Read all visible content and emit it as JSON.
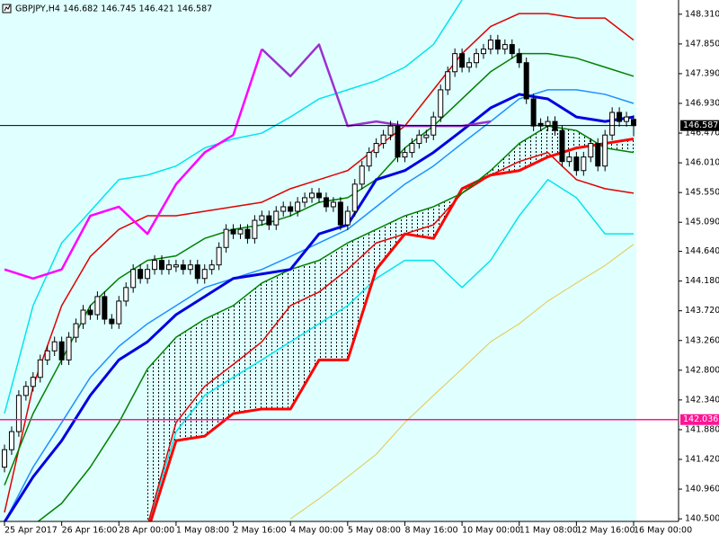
{
  "chart_data": {
    "type": "candlestick",
    "title": "GBPJPY,H4  146.682 146.745 146.421 146.587",
    "ylim": [
      140.46,
      148.53
    ],
    "xlim": [
      0,
      88
    ],
    "yticks": [
      {
        "value": 148.31,
        "label": "148.310"
      },
      {
        "value": 147.85,
        "label": "147.850"
      },
      {
        "value": 147.39,
        "label": "147.390"
      },
      {
        "value": 146.93,
        "label": "146.930"
      },
      {
        "value": 146.47,
        "label": "146.470"
      },
      {
        "value": 146.01,
        "label": "146.010"
      },
      {
        "value": 145.55,
        "label": "145.550"
      },
      {
        "value": 145.09,
        "label": "145.090"
      },
      {
        "value": 144.64,
        "label": "144.640"
      },
      {
        "value": 144.18,
        "label": "144.180"
      },
      {
        "value": 143.72,
        "label": "143.720"
      },
      {
        "value": 143.26,
        "label": "143.260"
      },
      {
        "value": 142.8,
        "label": "142.800"
      },
      {
        "value": 142.34,
        "label": "142.340"
      },
      {
        "value": 141.88,
        "label": "141.880"
      },
      {
        "value": 141.42,
        "label": "141.420"
      },
      {
        "value": 140.96,
        "label": "140.960"
      },
      {
        "value": 140.5,
        "label": "140.500"
      }
    ],
    "xticks": [
      {
        "value": 0,
        "label": "25 Apr 2017"
      },
      {
        "value": 8,
        "label": "26 Apr 16:00"
      },
      {
        "value": 16,
        "label": "28 Apr 00:00"
      },
      {
        "value": 24,
        "label": "1 May 08:00"
      },
      {
        "value": 32,
        "label": "2 May 16:00"
      },
      {
        "value": 40,
        "label": "4 May 00:00"
      },
      {
        "value": 48,
        "label": "5 May 08:00"
      },
      {
        "value": 56,
        "label": "8 May 16:00"
      },
      {
        "value": 64,
        "label": "10 May 00:00"
      },
      {
        "value": 72,
        "label": "11 May 08:00"
      },
      {
        "value": 80,
        "label": "12 May 16:00"
      },
      {
        "value": 88,
        "label": "16 May 00:00"
      }
    ],
    "up_color": "#ffffff",
    "down_color": "#000000",
    "ohlc": [
      [
        141.3,
        141.65,
        141.22,
        141.57
      ],
      [
        141.57,
        141.93,
        141.49,
        141.85
      ],
      [
        141.85,
        142.49,
        141.77,
        142.41
      ],
      [
        142.41,
        142.63,
        142.33,
        142.55
      ],
      [
        142.55,
        142.77,
        142.47,
        142.69
      ],
      [
        142.69,
        143.04,
        142.61,
        142.96
      ],
      [
        142.96,
        143.18,
        142.88,
        143.1
      ],
      [
        143.1,
        143.32,
        143.02,
        143.24
      ],
      [
        143.24,
        143.32,
        142.88,
        142.96
      ],
      [
        142.96,
        143.39,
        142.88,
        143.31
      ],
      [
        143.31,
        143.6,
        143.23,
        143.52
      ],
      [
        143.52,
        143.81,
        143.44,
        143.73
      ],
      [
        143.73,
        143.81,
        143.58,
        143.66
      ],
      [
        143.66,
        144.02,
        143.58,
        143.94
      ],
      [
        143.94,
        144.02,
        143.51,
        143.59
      ],
      [
        143.59,
        143.67,
        143.44,
        143.52
      ],
      [
        143.52,
        143.95,
        143.44,
        143.87
      ],
      [
        143.87,
        144.16,
        143.79,
        144.08
      ],
      [
        144.08,
        144.44,
        144.0,
        144.36
      ],
      [
        144.36,
        144.44,
        144.14,
        144.22
      ],
      [
        144.22,
        144.44,
        144.14,
        144.36
      ],
      [
        144.36,
        144.58,
        144.28,
        144.5
      ],
      [
        144.5,
        144.58,
        144.28,
        144.36
      ],
      [
        144.36,
        144.51,
        144.28,
        144.43
      ],
      [
        144.4,
        144.51,
        144.32,
        144.43
      ],
      [
        144.43,
        144.51,
        144.28,
        144.36
      ],
      [
        144.36,
        144.51,
        144.28,
        144.43
      ],
      [
        144.43,
        144.51,
        144.14,
        144.22
      ],
      [
        144.22,
        144.44,
        144.14,
        144.36
      ],
      [
        144.36,
        144.51,
        144.28,
        144.43
      ],
      [
        144.43,
        144.78,
        144.35,
        144.7
      ],
      [
        144.7,
        145.06,
        144.62,
        144.98
      ],
      [
        144.98,
        145.06,
        144.83,
        144.91
      ],
      [
        144.91,
        145.06,
        144.83,
        144.98
      ],
      [
        144.98,
        145.06,
        144.76,
        144.84
      ],
      [
        144.84,
        145.2,
        144.76,
        145.12
      ],
      [
        145.12,
        145.27,
        145.04,
        145.19
      ],
      [
        145.19,
        145.27,
        144.97,
        145.05
      ],
      [
        145.05,
        145.34,
        144.97,
        145.26
      ],
      [
        145.26,
        145.41,
        145.18,
        145.33
      ],
      [
        145.33,
        145.41,
        145.18,
        145.26
      ],
      [
        145.26,
        145.48,
        145.18,
        145.4
      ],
      [
        145.4,
        145.55,
        145.32,
        145.47
      ],
      [
        145.47,
        145.62,
        145.39,
        145.54
      ],
      [
        145.54,
        145.62,
        145.39,
        145.47
      ],
      [
        145.47,
        145.55,
        145.25,
        145.33
      ],
      [
        145.33,
        145.48,
        145.25,
        145.4
      ],
      [
        145.4,
        145.48,
        144.97,
        145.05
      ],
      [
        145.05,
        145.34,
        144.97,
        145.26
      ],
      [
        145.26,
        145.76,
        145.18,
        145.68
      ],
      [
        145.68,
        146.04,
        145.6,
        145.96
      ],
      [
        145.96,
        146.25,
        145.88,
        146.17
      ],
      [
        146.17,
        146.39,
        146.09,
        146.31
      ],
      [
        146.31,
        146.52,
        146.23,
        146.44
      ],
      [
        146.44,
        146.66,
        146.36,
        146.58
      ],
      [
        146.58,
        146.66,
        146.02,
        146.1
      ],
      [
        146.1,
        146.25,
        146.02,
        146.17
      ],
      [
        146.17,
        146.39,
        146.09,
        146.31
      ],
      [
        146.31,
        146.52,
        146.23,
        146.44
      ],
      [
        146.4,
        146.52,
        146.32,
        146.44
      ],
      [
        146.44,
        146.8,
        146.36,
        146.72
      ],
      [
        146.72,
        147.22,
        146.64,
        147.14
      ],
      [
        147.14,
        147.5,
        147.06,
        147.42
      ],
      [
        147.42,
        147.78,
        147.34,
        147.7
      ],
      [
        147.7,
        147.78,
        147.41,
        147.49
      ],
      [
        147.49,
        147.64,
        147.41,
        147.56
      ],
      [
        147.56,
        147.78,
        147.48,
        147.7
      ],
      [
        147.7,
        147.85,
        147.62,
        147.77
      ],
      [
        147.77,
        147.99,
        147.69,
        147.91
      ],
      [
        147.91,
        147.99,
        147.69,
        147.77
      ],
      [
        147.77,
        147.92,
        147.69,
        147.84
      ],
      [
        147.84,
        147.92,
        147.62,
        147.7
      ],
      [
        147.7,
        147.78,
        147.48,
        147.56
      ],
      [
        147.56,
        147.64,
        146.92,
        147.0
      ],
      [
        147.0,
        147.08,
        146.5,
        146.58
      ],
      [
        146.62,
        146.7,
        146.5,
        146.58
      ],
      [
        146.58,
        146.73,
        146.5,
        146.65
      ],
      [
        146.65,
        146.73,
        146.43,
        146.51
      ],
      [
        146.51,
        146.59,
        145.95,
        146.03
      ],
      [
        146.03,
        146.18,
        145.95,
        146.1
      ],
      [
        146.1,
        146.18,
        145.81,
        145.89
      ],
      [
        145.89,
        146.18,
        145.81,
        146.1
      ],
      [
        146.1,
        146.39,
        146.02,
        146.31
      ],
      [
        146.31,
        146.39,
        145.88,
        145.96
      ],
      [
        145.96,
        146.52,
        145.88,
        146.44
      ],
      [
        146.44,
        146.87,
        146.36,
        146.79
      ],
      [
        146.79,
        146.87,
        146.57,
        146.65
      ],
      [
        146.65,
        146.8,
        146.57,
        146.72
      ],
      [
        146.682,
        146.745,
        146.421,
        146.587
      ]
    ],
    "line_x": [
      0,
      4,
      8,
      12,
      16,
      20,
      24,
      28,
      32,
      36,
      40,
      44,
      48,
      52,
      56,
      60,
      64,
      68,
      72,
      76,
      80,
      84,
      88
    ],
    "series": [
      {
        "color": "#00e5ee",
        "width": 1.5,
        "values": [
          142.13,
          143.8,
          144.77,
          145.26,
          145.75,
          145.82,
          145.96,
          146.24,
          146.38,
          146.47,
          146.72,
          147.0,
          147.14,
          147.28,
          147.49,
          147.84,
          148.53,
          null,
          null,
          null,
          null,
          null,
          null
        ]
      },
      {
        "color": "#00e5ee",
        "width": 1.5,
        "values": [
          null,
          null,
          null,
          null,
          null,
          140.4,
          141.85,
          142.41,
          142.69,
          142.96,
          143.24,
          143.52,
          143.8,
          144.22,
          144.5,
          144.5,
          144.08,
          144.5,
          145.19,
          145.75,
          145.47,
          144.91,
          144.91
        ]
      },
      {
        "color": "#e6c84a",
        "width": 1,
        "values": [
          null,
          null,
          null,
          null,
          null,
          null,
          null,
          null,
          null,
          null,
          140.5,
          140.81,
          141.15,
          141.5,
          141.99,
          142.41,
          142.82,
          143.24,
          143.52,
          143.87,
          144.15,
          144.42,
          144.75
        ]
      },
      {
        "color": "#e00000",
        "width": 1.5,
        "values": [
          140.6,
          142.55,
          143.8,
          144.56,
          144.98,
          145.19,
          145.19,
          145.26,
          145.33,
          145.4,
          145.61,
          145.75,
          145.89,
          146.24,
          146.58,
          147.14,
          147.7,
          148.12,
          148.32,
          148.32,
          148.25,
          148.25,
          147.91
        ]
      },
      {
        "color": "#e00000",
        "width": 1.5,
        "values": [
          null,
          null,
          null,
          null,
          null,
          140.4,
          141.99,
          142.55,
          142.89,
          143.24,
          143.8,
          144.01,
          144.36,
          144.77,
          144.91,
          145.05,
          145.54,
          145.82,
          146.03,
          146.17,
          145.75,
          145.61,
          145.54
        ]
      },
      {
        "color": "#ff0000",
        "width": 3,
        "values": [
          null,
          null,
          null,
          null,
          null,
          140.3,
          141.71,
          141.78,
          142.13,
          142.2,
          142.2,
          142.96,
          142.96,
          144.36,
          144.91,
          144.84,
          145.61,
          145.82,
          145.89,
          146.1,
          146.24,
          146.31,
          146.38
        ]
      },
      {
        "color": "#008000",
        "width": 1.5,
        "values": [
          null,
          140.4,
          140.74,
          141.3,
          141.99,
          142.82,
          143.31,
          143.59,
          143.8,
          144.15,
          144.36,
          144.5,
          144.77,
          144.98,
          145.19,
          145.33,
          145.54,
          145.89,
          146.31,
          146.58,
          146.51,
          146.24,
          146.17
        ]
      },
      {
        "color": "#008000",
        "width": 1.5,
        "values": [
          141.02,
          142.13,
          142.96,
          143.8,
          144.22,
          144.5,
          144.57,
          144.84,
          144.98,
          145.05,
          145.19,
          145.4,
          145.47,
          145.75,
          146.24,
          146.58,
          147.0,
          147.42,
          147.7,
          147.7,
          147.63,
          147.49,
          147.35
        ]
      },
      {
        "color": "#1e90ff",
        "width": 1.5,
        "values": [
          140.45,
          141.3,
          141.99,
          142.69,
          143.17,
          143.52,
          143.8,
          144.08,
          144.22,
          144.36,
          144.56,
          144.77,
          144.98,
          145.33,
          145.68,
          145.96,
          146.31,
          146.65,
          147.0,
          147.14,
          147.14,
          147.07,
          146.93
        ]
      },
      {
        "color": "#0000e0",
        "width": 3,
        "values": [
          140.45,
          141.15,
          141.71,
          142.41,
          142.96,
          143.24,
          143.66,
          143.94,
          144.22,
          144.29,
          144.36,
          144.91,
          145.05,
          145.75,
          145.89,
          146.17,
          146.51,
          146.86,
          147.07,
          147.0,
          146.72,
          146.65,
          146.72
        ]
      },
      {
        "color": "#ff00ff",
        "width": 2.5,
        "values": [
          144.36,
          144.22,
          144.36,
          145.19,
          145.33,
          144.91,
          145.68,
          146.17,
          146.44,
          147.77,
          null,
          null,
          null,
          null,
          null,
          null,
          null,
          null,
          null,
          null,
          null,
          null,
          null
        ]
      },
      {
        "color": "#9932cc",
        "width": 2.5,
        "values": [
          null,
          null,
          null,
          null,
          null,
          null,
          null,
          null,
          null,
          147.77,
          147.35,
          147.84,
          146.58,
          146.65,
          146.58,
          146.58,
          146.58,
          146.65,
          null,
          null,
          null,
          null,
          null
        ]
      }
    ],
    "cloud": {
      "upper": 6,
      "lower": 5,
      "color": "#000000"
    },
    "hlines": [
      {
        "value": 146.587,
        "color": "#000000"
      },
      {
        "value": 142.036,
        "color": "#ff1493"
      }
    ],
    "background": "#e0ffff"
  }
}
